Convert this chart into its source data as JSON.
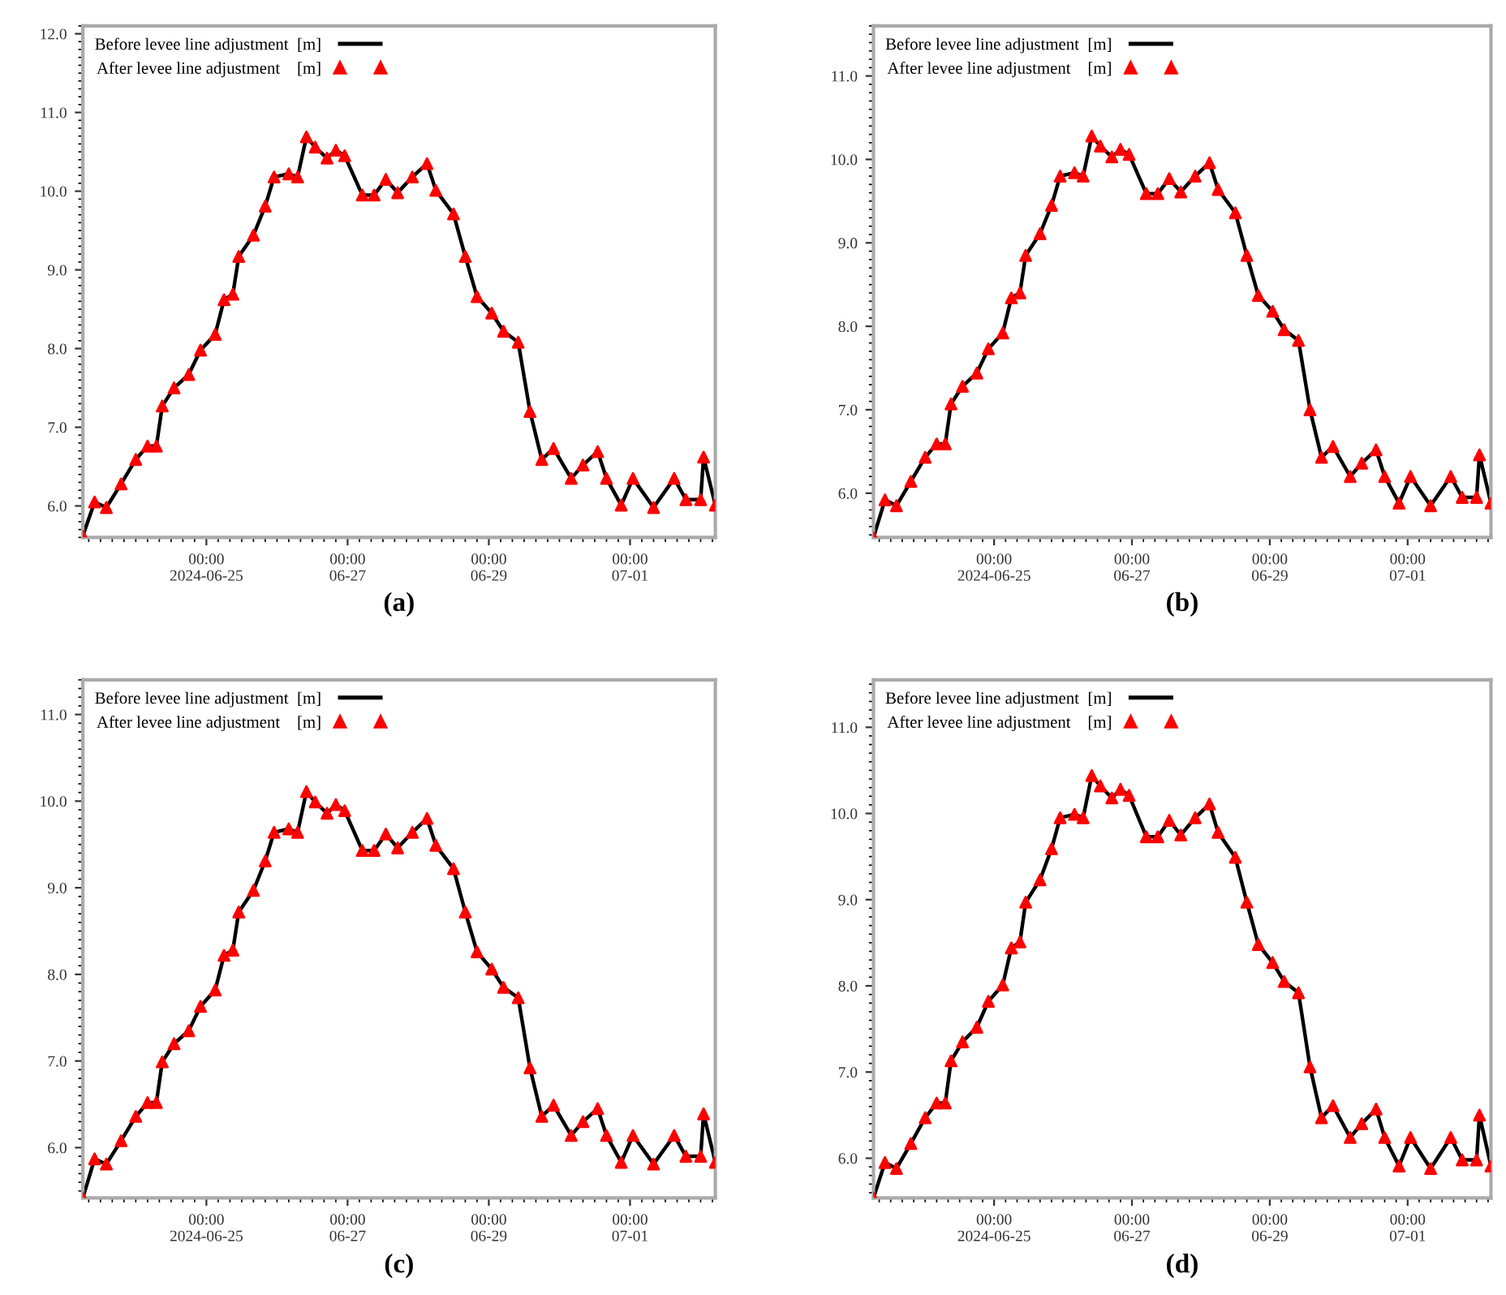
{
  "chart_data": [
    {
      "type": "line",
      "title": "(a)",
      "x": [
        "2024-06-23T06:00",
        "2024-06-23T10:00",
        "2024-06-23T14:00",
        "2024-06-23T19:00",
        "2024-06-24T00:00",
        "2024-06-24T04:00",
        "2024-06-24T07:00",
        "2024-06-24T09:00",
        "2024-06-24T13:00",
        "2024-06-24T18:00",
        "2024-06-24T22:00",
        "2024-06-25T03:00",
        "2024-06-25T06:00",
        "2024-06-25T09:00",
        "2024-06-25T11:00",
        "2024-06-25T16:00",
        "2024-06-25T20:00",
        "2024-06-25T23:00",
        "2024-06-26T04:00",
        "2024-06-26T07:00",
        "2024-06-26T10:00",
        "2024-06-26T13:00",
        "2024-06-26T17:00",
        "2024-06-26T20:00",
        "2024-06-26T23:00",
        "2024-06-27T05:00",
        "2024-06-27T09:00",
        "2024-06-27T13:00",
        "2024-06-27T17:00",
        "2024-06-27T22:00",
        "2024-06-28T03:00",
        "2024-06-28T06:00",
        "2024-06-28T12:00",
        "2024-06-28T16:00",
        "2024-06-28T20:00",
        "2024-06-29T01:00",
        "2024-06-29T05:00",
        "2024-06-29T10:00",
        "2024-06-29T14:00",
        "2024-06-29T18:00",
        "2024-06-29T22:00",
        "2024-06-30T04:00",
        "2024-06-30T08:00",
        "2024-06-30T13:00",
        "2024-06-30T16:00",
        "2024-06-30T21:00",
        "2024-07-01T01:00",
        "2024-07-01T08:00",
        "2024-07-01T15:00",
        "2024-07-01T19:00",
        "2024-07-02T00:00",
        "2024-07-02T01:00",
        "2024-07-02T05:00"
      ],
      "xlim": [
        "2024-06-23T06:00",
        "2024-07-02T05:00"
      ],
      "xticks": [
        {
          "value": "2024-06-25",
          "label": "00:00\n2024-06-25"
        },
        {
          "value": "2024-06-27",
          "label": "00:00\n06-27"
        },
        {
          "value": "2024-06-29",
          "label": "00:00\n06-29"
        },
        {
          "value": "2024-07-01",
          "label": "00:00\n07-01"
        }
      ],
      "ylim": [
        5.6,
        12.1
      ],
      "yticks": [
        {
          "value": 6,
          "label": "6.0"
        },
        {
          "value": 7,
          "label": "7.0"
        },
        {
          "value": 8,
          "label": "8.0"
        },
        {
          "value": 9,
          "label": "9.0"
        },
        {
          "value": 10,
          "label": "10.0"
        },
        {
          "value": 11,
          "label": "11.0"
        },
        {
          "value": 12,
          "label": "12.0"
        }
      ],
      "legend": "top left",
      "grid": false,
      "series": [
        {
          "name": "Before levee line adjustment  [m]",
          "color": "#000000",
          "line_style": "solid",
          "values": [
            5.62,
            6.05,
            5.98,
            6.28,
            6.59,
            6.76,
            6.76,
            7.27,
            7.5,
            7.67,
            7.98,
            8.18,
            8.62,
            8.69,
            9.17,
            9.44,
            9.81,
            10.18,
            10.22,
            10.18,
            10.69,
            10.56,
            10.42,
            10.52,
            10.45,
            9.95,
            9.95,
            10.15,
            9.98,
            10.18,
            10.35,
            10.01,
            9.71,
            9.17,
            8.66,
            8.45,
            8.22,
            8.08,
            7.2,
            6.59,
            6.73,
            6.35,
            6.52,
            6.69,
            6.35,
            6.01,
            6.35,
            5.98,
            6.35,
            6.08,
            6.08,
            6.62,
            6.01
          ]
        },
        {
          "name": "After levee line adjustment    [m]",
          "type": "scatter",
          "marker": "triangle",
          "color": "#ff0000",
          "values": [
            5.62,
            6.05,
            5.98,
            6.28,
            6.59,
            6.76,
            6.76,
            7.27,
            7.5,
            7.67,
            7.98,
            8.18,
            8.62,
            8.69,
            9.17,
            9.44,
            9.81,
            10.18,
            10.22,
            10.18,
            10.69,
            10.56,
            10.42,
            10.52,
            10.45,
            9.95,
            9.95,
            10.15,
            9.98,
            10.18,
            10.35,
            10.01,
            9.71,
            9.17,
            8.66,
            8.45,
            8.22,
            8.08,
            7.2,
            6.59,
            6.73,
            6.35,
            6.52,
            6.69,
            6.35,
            6.01,
            6.35,
            5.98,
            6.35,
            6.08,
            6.08,
            6.62,
            6.01
          ]
        }
      ]
    },
    {
      "type": "line",
      "title": "(b)",
      "x": [
        "2024-06-23T06:00",
        "2024-06-23T10:00",
        "2024-06-23T14:00",
        "2024-06-23T19:00",
        "2024-06-24T00:00",
        "2024-06-24T04:00",
        "2024-06-24T07:00",
        "2024-06-24T09:00",
        "2024-06-24T13:00",
        "2024-06-24T18:00",
        "2024-06-24T22:00",
        "2024-06-25T03:00",
        "2024-06-25T06:00",
        "2024-06-25T09:00",
        "2024-06-25T11:00",
        "2024-06-25T16:00",
        "2024-06-25T20:00",
        "2024-06-25T23:00",
        "2024-06-26T04:00",
        "2024-06-26T07:00",
        "2024-06-26T10:00",
        "2024-06-26T13:00",
        "2024-06-26T17:00",
        "2024-06-26T20:00",
        "2024-06-26T23:00",
        "2024-06-27T05:00",
        "2024-06-27T09:00",
        "2024-06-27T13:00",
        "2024-06-27T17:00",
        "2024-06-27T22:00",
        "2024-06-28T03:00",
        "2024-06-28T06:00",
        "2024-06-28T12:00",
        "2024-06-28T16:00",
        "2024-06-28T20:00",
        "2024-06-29T01:00",
        "2024-06-29T05:00",
        "2024-06-29T10:00",
        "2024-06-29T14:00",
        "2024-06-29T18:00",
        "2024-06-29T22:00",
        "2024-06-30T04:00",
        "2024-06-30T08:00",
        "2024-06-30T13:00",
        "2024-06-30T16:00",
        "2024-06-30T21:00",
        "2024-07-01T01:00",
        "2024-07-01T08:00",
        "2024-07-01T15:00",
        "2024-07-01T19:00",
        "2024-07-02T00:00",
        "2024-07-02T01:00",
        "2024-07-02T05:00"
      ],
      "xlim": [
        "2024-06-23T06:00",
        "2024-07-02T05:00"
      ],
      "xticks": [
        {
          "value": "2024-06-25",
          "label": "00:00\n2024-06-25"
        },
        {
          "value": "2024-06-27",
          "label": "00:00\n06-27"
        },
        {
          "value": "2024-06-29",
          "label": "00:00\n06-29"
        },
        {
          "value": "2024-07-01",
          "label": "00:00\n07-01"
        }
      ],
      "ylim": [
        5.47,
        11.6
      ],
      "yticks": [
        {
          "value": 6,
          "label": "6.0"
        },
        {
          "value": 7,
          "label": "7.0"
        },
        {
          "value": 8,
          "label": "8.0"
        },
        {
          "value": 9,
          "label": "9.0"
        },
        {
          "value": 10,
          "label": "10.0"
        },
        {
          "value": 11,
          "label": "11.0"
        }
      ],
      "legend": "top left",
      "grid": false,
      "series": [
        {
          "name": "Before levee line adjustment  [m]",
          "color": "#000000",
          "line_style": "solid",
          "values": [
            5.47,
            5.92,
            5.85,
            6.14,
            6.43,
            6.59,
            6.59,
            7.07,
            7.28,
            7.44,
            7.73,
            7.92,
            8.34,
            8.4,
            8.85,
            9.11,
            9.45,
            9.8,
            9.84,
            9.8,
            10.28,
            10.16,
            10.03,
            10.12,
            10.06,
            9.59,
            9.59,
            9.77,
            9.61,
            9.8,
            9.96,
            9.64,
            9.36,
            8.85,
            8.37,
            8.18,
            7.96,
            7.83,
            7.0,
            6.43,
            6.56,
            6.2,
            6.36,
            6.52,
            6.2,
            5.88,
            6.2,
            5.85,
            6.2,
            5.95,
            5.95,
            6.46,
            5.88
          ]
        },
        {
          "name": "After levee line adjustment    [m]",
          "type": "scatter",
          "marker": "triangle",
          "color": "#ff0000",
          "values": [
            5.47,
            5.92,
            5.85,
            6.14,
            6.43,
            6.59,
            6.59,
            7.07,
            7.28,
            7.44,
            7.73,
            7.92,
            8.34,
            8.4,
            8.85,
            9.11,
            9.45,
            9.8,
            9.84,
            9.8,
            10.28,
            10.16,
            10.03,
            10.12,
            10.06,
            9.59,
            9.59,
            9.77,
            9.61,
            9.8,
            9.96,
            9.64,
            9.36,
            8.85,
            8.37,
            8.18,
            7.96,
            7.83,
            7.0,
            6.43,
            6.56,
            6.2,
            6.36,
            6.52,
            6.2,
            5.88,
            6.2,
            5.85,
            6.2,
            5.95,
            5.95,
            6.46,
            5.88
          ]
        }
      ]
    },
    {
      "type": "line",
      "title": "(c)",
      "x": [
        "2024-06-23T06:00",
        "2024-06-23T10:00",
        "2024-06-23T14:00",
        "2024-06-23T19:00",
        "2024-06-24T00:00",
        "2024-06-24T04:00",
        "2024-06-24T07:00",
        "2024-06-24T09:00",
        "2024-06-24T13:00",
        "2024-06-24T18:00",
        "2024-06-24T22:00",
        "2024-06-25T03:00",
        "2024-06-25T06:00",
        "2024-06-25T09:00",
        "2024-06-25T11:00",
        "2024-06-25T16:00",
        "2024-06-25T20:00",
        "2024-06-25T23:00",
        "2024-06-26T04:00",
        "2024-06-26T07:00",
        "2024-06-26T10:00",
        "2024-06-26T13:00",
        "2024-06-26T17:00",
        "2024-06-26T20:00",
        "2024-06-26T23:00",
        "2024-06-27T05:00",
        "2024-06-27T09:00",
        "2024-06-27T13:00",
        "2024-06-27T17:00",
        "2024-06-27T22:00",
        "2024-06-28T03:00",
        "2024-06-28T06:00",
        "2024-06-28T12:00",
        "2024-06-28T16:00",
        "2024-06-28T20:00",
        "2024-06-29T01:00",
        "2024-06-29T05:00",
        "2024-06-29T10:00",
        "2024-06-29T14:00",
        "2024-06-29T18:00",
        "2024-06-29T22:00",
        "2024-06-30T04:00",
        "2024-06-30T08:00",
        "2024-06-30T13:00",
        "2024-06-30T16:00",
        "2024-06-30T21:00",
        "2024-07-01T01:00",
        "2024-07-01T08:00",
        "2024-07-01T15:00",
        "2024-07-01T19:00",
        "2024-07-02T00:00",
        "2024-07-02T01:00",
        "2024-07-02T05:00"
      ],
      "xlim": [
        "2024-06-23T06:00",
        "2024-07-02T05:00"
      ],
      "xticks": [
        {
          "value": "2024-06-25",
          "label": "00:00\n2024-06-25"
        },
        {
          "value": "2024-06-27",
          "label": "00:00\n06-27"
        },
        {
          "value": "2024-06-29",
          "label": "00:00\n06-29"
        },
        {
          "value": "2024-07-01",
          "label": "00:00\n07-01"
        }
      ],
      "ylim": [
        5.42,
        11.4
      ],
      "yticks": [
        {
          "value": 6,
          "label": "6.0"
        },
        {
          "value": 7,
          "label": "7.0"
        },
        {
          "value": 8,
          "label": "8.0"
        },
        {
          "value": 9,
          "label": "9.0"
        },
        {
          "value": 10,
          "label": "10.0"
        },
        {
          "value": 11,
          "label": "11.0"
        }
      ],
      "legend": "top left",
      "grid": false,
      "series": [
        {
          "name": "Before levee line adjustment  [m]",
          "color": "#000000",
          "line_style": "solid",
          "values": [
            5.42,
            5.87,
            5.81,
            6.08,
            6.36,
            6.52,
            6.52,
            6.99,
            7.2,
            7.35,
            7.63,
            7.82,
            8.22,
            8.28,
            8.72,
            8.97,
            9.31,
            9.64,
            9.68,
            9.64,
            10.11,
            9.99,
            9.86,
            9.96,
            9.89,
            9.43,
            9.43,
            9.62,
            9.46,
            9.64,
            9.8,
            9.49,
            9.22,
            8.72,
            8.26,
            8.06,
            7.85,
            7.73,
            6.92,
            6.36,
            6.49,
            6.14,
            6.3,
            6.45,
            6.14,
            5.83,
            6.14,
            5.81,
            6.14,
            5.9,
            5.9,
            6.39,
            5.83
          ]
        },
        {
          "name": "After levee line adjustment    [m]",
          "type": "scatter",
          "marker": "triangle",
          "color": "#ff0000",
          "values": [
            5.42,
            5.87,
            5.81,
            6.08,
            6.36,
            6.52,
            6.52,
            6.99,
            7.2,
            7.35,
            7.63,
            7.82,
            8.22,
            8.28,
            8.72,
            8.97,
            9.31,
            9.64,
            9.68,
            9.64,
            10.11,
            9.99,
            9.86,
            9.96,
            9.89,
            9.43,
            9.43,
            9.62,
            9.46,
            9.64,
            9.8,
            9.49,
            9.22,
            8.72,
            8.26,
            8.06,
            7.85,
            7.73,
            6.92,
            6.36,
            6.49,
            6.14,
            6.3,
            6.45,
            6.14,
            5.83,
            6.14,
            5.81,
            6.14,
            5.9,
            5.9,
            6.39,
            5.83
          ]
        }
      ]
    },
    {
      "type": "line",
      "title": "(d)",
      "x": [
        "2024-06-23T06:00",
        "2024-06-23T10:00",
        "2024-06-23T14:00",
        "2024-06-23T19:00",
        "2024-06-24T00:00",
        "2024-06-24T04:00",
        "2024-06-24T07:00",
        "2024-06-24T09:00",
        "2024-06-24T13:00",
        "2024-06-24T18:00",
        "2024-06-24T22:00",
        "2024-06-25T03:00",
        "2024-06-25T06:00",
        "2024-06-25T09:00",
        "2024-06-25T11:00",
        "2024-06-25T16:00",
        "2024-06-25T20:00",
        "2024-06-25T23:00",
        "2024-06-26T04:00",
        "2024-06-26T07:00",
        "2024-06-26T10:00",
        "2024-06-26T13:00",
        "2024-06-26T17:00",
        "2024-06-26T20:00",
        "2024-06-26T23:00",
        "2024-06-27T05:00",
        "2024-06-27T09:00",
        "2024-06-27T13:00",
        "2024-06-27T17:00",
        "2024-06-27T22:00",
        "2024-06-28T03:00",
        "2024-06-28T06:00",
        "2024-06-28T12:00",
        "2024-06-28T16:00",
        "2024-06-28T20:00",
        "2024-06-29T01:00",
        "2024-06-29T05:00",
        "2024-06-29T10:00",
        "2024-06-29T14:00",
        "2024-06-29T18:00",
        "2024-06-29T22:00",
        "2024-06-30T04:00",
        "2024-06-30T08:00",
        "2024-06-30T13:00",
        "2024-06-30T16:00",
        "2024-06-30T21:00",
        "2024-07-01T01:00",
        "2024-07-01T08:00",
        "2024-07-01T15:00",
        "2024-07-01T19:00",
        "2024-07-02T00:00",
        "2024-07-02T01:00",
        "2024-07-02T05:00"
      ],
      "xlim": [
        "2024-06-23T06:00",
        "2024-07-02T05:00"
      ],
      "xticks": [
        {
          "value": "2024-06-25",
          "label": "00:00\n2024-06-25"
        },
        {
          "value": "2024-06-27",
          "label": "00:00\n06-27"
        },
        {
          "value": "2024-06-29",
          "label": "00:00\n06-29"
        },
        {
          "value": "2024-07-01",
          "label": "00:00\n07-01"
        }
      ],
      "ylim": [
        5.54,
        11.55
      ],
      "yticks": [
        {
          "value": 6,
          "label": "6.0"
        },
        {
          "value": 7,
          "label": "7.0"
        },
        {
          "value": 8,
          "label": "8.0"
        },
        {
          "value": 9,
          "label": "9.0"
        },
        {
          "value": 10,
          "label": "10.0"
        },
        {
          "value": 11,
          "label": "11.0"
        }
      ],
      "legend": "top left",
      "grid": false,
      "series": [
        {
          "name": "Before levee line adjustment  [m]",
          "color": "#000000",
          "line_style": "solid",
          "values": [
            5.54,
            5.95,
            5.88,
            6.17,
            6.47,
            6.64,
            6.64,
            7.13,
            7.35,
            7.52,
            7.82,
            8.01,
            8.44,
            8.51,
            8.97,
            9.23,
            9.59,
            9.95,
            9.99,
            9.95,
            10.44,
            10.32,
            10.18,
            10.28,
            10.21,
            9.73,
            9.73,
            9.92,
            9.75,
            9.95,
            10.11,
            9.78,
            9.49,
            8.97,
            8.48,
            8.27,
            8.05,
            7.92,
            7.06,
            6.47,
            6.61,
            6.24,
            6.4,
            6.57,
            6.24,
            5.91,
            6.24,
            5.88,
            6.24,
            5.98,
            5.98,
            6.5,
            5.91
          ]
        },
        {
          "name": "After levee line adjustment    [m]",
          "type": "scatter",
          "marker": "triangle",
          "color": "#ff0000",
          "values": [
            5.54,
            5.95,
            5.88,
            6.17,
            6.47,
            6.64,
            6.64,
            7.13,
            7.35,
            7.52,
            7.82,
            8.01,
            8.44,
            8.51,
            8.97,
            9.23,
            9.59,
            9.95,
            9.99,
            9.95,
            10.44,
            10.32,
            10.18,
            10.28,
            10.21,
            9.73,
            9.73,
            9.92,
            9.75,
            9.95,
            10.11,
            9.78,
            9.49,
            8.97,
            8.48,
            8.27,
            8.05,
            7.92,
            7.06,
            6.47,
            6.61,
            6.24,
            6.4,
            6.57,
            6.24,
            5.91,
            6.24,
            5.88,
            6.24,
            5.98,
            5.98,
            6.5,
            5.91
          ]
        }
      ]
    }
  ]
}
